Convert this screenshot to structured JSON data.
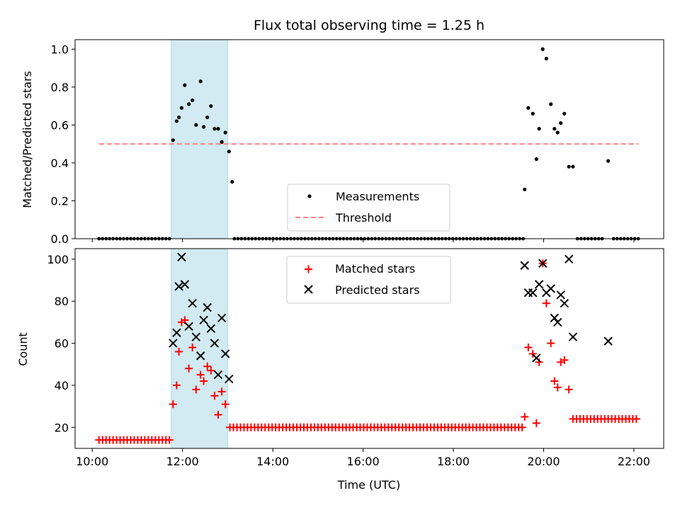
{
  "chart_data": {
    "type": "scatter",
    "title": "Flux total observing time = 1.25 h",
    "xlabel": "Time (UTC)",
    "x_unit": "hours",
    "xlim": [
      9.62,
      22.66
    ],
    "x_ticks": [
      10,
      12,
      14,
      16,
      18,
      20,
      22
    ],
    "x_tick_labels": [
      "10:00",
      "12:00",
      "14:00",
      "16:00",
      "18:00",
      "20:00",
      "22:00"
    ],
    "highlight_span": {
      "start": 11.75,
      "end": 13.0,
      "color": "#add8e6"
    },
    "top": {
      "ylabel": "Matched/Predicted stars",
      "ylim": [
        0,
        1.05
      ],
      "y_ticks": [
        "0.0",
        "0.2",
        "0.4",
        "0.6",
        "0.8",
        "1.0"
      ],
      "legend": {
        "position": "lower center",
        "entries": [
          "Measurements",
          "Threshold"
        ]
      },
      "threshold": {
        "name": "Threshold",
        "y": 0.5,
        "x": [
          10.15,
          22.1
        ],
        "color": "#ff7f7f",
        "style": "dashed"
      },
      "measurements": {
        "name": "Measurements",
        "color": "#000000",
        "x": [
          11.79,
          11.87,
          11.92,
          11.98,
          12.05,
          12.14,
          12.22,
          12.3,
          12.4,
          12.47,
          12.55,
          12.63,
          12.71,
          12.79,
          12.87,
          12.95,
          13.03,
          13.1,
          19.58,
          19.66,
          19.76,
          19.84,
          19.9,
          19.98,
          20.06,
          20.16,
          20.24,
          20.31,
          20.38,
          20.46,
          20.56,
          20.65,
          21.43
        ],
        "y": [
          0.52,
          0.62,
          0.64,
          0.69,
          0.81,
          0.71,
          0.73,
          0.6,
          0.83,
          0.59,
          0.64,
          0.7,
          0.58,
          0.58,
          0.51,
          0.56,
          0.46,
          0.3,
          0.26,
          0.69,
          0.66,
          0.42,
          0.58,
          1.0,
          0.95,
          0.71,
          0.58,
          0.56,
          0.61,
          0.66,
          0.38,
          0.38,
          0.41
        ],
        "zero_ranges": [
          [
            10.15,
            11.75
          ],
          [
            13.15,
            19.55
          ],
          [
            20.75,
            21.35
          ],
          [
            21.55,
            22.1
          ]
        ]
      }
    },
    "bottom": {
      "ylabel": "Count",
      "ylim": [
        10,
        105
      ],
      "y_ticks": [
        "20",
        "40",
        "60",
        "80",
        "100"
      ],
      "legend": {
        "position": "upper center",
        "entries": [
          "Matched stars",
          "Predicted stars"
        ]
      },
      "matched": {
        "name": "Matched stars",
        "color": "#ff0000",
        "x": [
          11.79,
          11.87,
          11.92,
          11.98,
          12.05,
          12.14,
          12.22,
          12.3,
          12.4,
          12.47,
          12.55,
          12.63,
          12.71,
          12.79,
          12.87,
          12.95,
          19.58,
          19.66,
          19.76,
          19.84,
          19.9,
          19.98,
          20.06,
          20.16,
          20.24,
          20.31,
          20.38,
          20.46,
          20.56
        ],
        "y": [
          31,
          40,
          56,
          70,
          71,
          48,
          58,
          38,
          45,
          42,
          49,
          47,
          35,
          26,
          37,
          31,
          25,
          58,
          55,
          22,
          51,
          98,
          79,
          60,
          42,
          39,
          51,
          52,
          38
        ],
        "baseline_ranges": [
          {
            "x": [
              10.15,
              11.75
            ],
            "y": 14
          },
          {
            "x": [
              13.05,
              19.55
            ],
            "y": 20
          },
          {
            "x": [
              20.65,
              22.1
            ],
            "y": 24
          }
        ]
      },
      "predicted": {
        "name": "Predicted stars",
        "color": "#000000",
        "x": [
          11.79,
          11.87,
          11.92,
          11.98,
          12.05,
          12.14,
          12.22,
          12.3,
          12.4,
          12.47,
          12.55,
          12.63,
          12.71,
          12.79,
          12.87,
          12.95,
          13.03,
          19.58,
          19.66,
          19.76,
          19.84,
          19.9,
          19.98,
          20.06,
          20.16,
          20.24,
          20.31,
          20.38,
          20.46,
          20.56,
          20.65,
          21.43
        ],
        "y": [
          60,
          65,
          87,
          101,
          88,
          68,
          79,
          63,
          54,
          71,
          77,
          67,
          60,
          45,
          72,
          55,
          43,
          97,
          84,
          84,
          53,
          88,
          98,
          84,
          86,
          72,
          70,
          83,
          79,
          100,
          63,
          61
        ]
      }
    }
  }
}
